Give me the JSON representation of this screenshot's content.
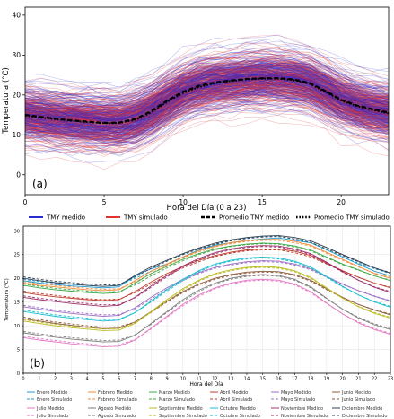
{
  "chart_data": [
    {
      "type": "line",
      "panel_label": "(a)",
      "xlabel": "Hora del Día (0 a 23)",
      "ylabel": "Temperatura (°C)",
      "xlim": [
        0,
        23
      ],
      "ylim": [
        -5,
        42
      ],
      "xticks": [
        0,
        5,
        10,
        15,
        20
      ],
      "yticks": [
        0,
        10,
        20,
        30,
        40
      ],
      "grid": false,
      "legend_position": "bottom",
      "legend": [
        {
          "label": "TMY medido",
          "color": "#2b2bd0",
          "style": "solid"
        },
        {
          "label": "TMY simulado",
          "color": "#e03030",
          "style": "solid"
        },
        {
          "label": "Promedio TMY medido",
          "color": "#000000",
          "style": "dashed"
        },
        {
          "label": "Promedio TMY simulado",
          "color": "#000000",
          "style": "dotted"
        }
      ],
      "colors": {
        "medido": "#2b2bd0",
        "simulado": "#e03030"
      },
      "series": [
        {
          "name": "Promedio TMY medido",
          "values": [
            15.0,
            14.5,
            14.0,
            13.6,
            13.3,
            13.0,
            13.1,
            14.0,
            16.0,
            18.6,
            20.8,
            22.3,
            23.1,
            23.6,
            24.0,
            24.2,
            24.2,
            23.9,
            23.0,
            21.0,
            18.8,
            17.4,
            16.4,
            15.6
          ]
        },
        {
          "name": "Promedio TMY simulado",
          "values": [
            14.8,
            14.3,
            13.9,
            13.5,
            13.2,
            12.9,
            13.0,
            13.8,
            15.7,
            18.3,
            20.5,
            22.0,
            22.9,
            23.5,
            23.9,
            24.1,
            24.1,
            23.7,
            22.8,
            20.8,
            18.6,
            17.2,
            16.2,
            15.4
          ]
        }
      ]
    },
    {
      "type": "line",
      "panel_label": "(b)",
      "xlabel": "Hora del Día",
      "ylabel": "Temperatura (°C)",
      "xlim": [
        0,
        23
      ],
      "ylim": [
        0,
        31
      ],
      "xticks": [
        0,
        1,
        2,
        3,
        4,
        5,
        6,
        7,
        8,
        9,
        10,
        11,
        12,
        13,
        14,
        15,
        16,
        17,
        18,
        19,
        20,
        21,
        22,
        23
      ],
      "yticks": [
        0,
        5,
        10,
        15,
        20,
        25,
        30
      ],
      "grid": true,
      "legend_position": "bottom",
      "series": [
        {
          "name": "Enero Medido",
          "color": "#1f9bcf",
          "style": "solid",
          "values": [
            19.5,
            19,
            18.7,
            18.4,
            18.2,
            18,
            18.2,
            20.5,
            22,
            23,
            24.5,
            26,
            27,
            27.5,
            28,
            28.3,
            28.5,
            28,
            27.5,
            26,
            24.5,
            23,
            21.5,
            20.5
          ]
        },
        {
          "name": "Enero Simulado",
          "color": "#1f9bcf",
          "style": "dashed",
          "values": [
            19.8,
            19.3,
            19,
            18.7,
            18.5,
            18.3,
            18.5,
            20,
            21.5,
            23,
            24.5,
            26,
            27,
            28,
            28.5,
            28.8,
            28.8,
            28.3,
            27.5,
            26,
            24.5,
            23.2,
            22,
            21
          ]
        },
        {
          "name": "Febrero Medido",
          "color": "#f08b3a",
          "style": "solid",
          "values": [
            19,
            18.5,
            18.2,
            17.9,
            17.6,
            17.4,
            17.6,
            19.5,
            21.5,
            23,
            24.5,
            25.8,
            26.8,
            27.5,
            28,
            28.2,
            28.2,
            27.8,
            27,
            25.5,
            24,
            22.5,
            21,
            20
          ]
        },
        {
          "name": "Febrero Simulado",
          "color": "#f08b3a",
          "style": "dashed",
          "values": [
            19.3,
            18.8,
            18.5,
            18.2,
            17.9,
            17.7,
            17.8,
            19.2,
            21,
            22.8,
            24.3,
            25.6,
            26.6,
            27.3,
            27.8,
            28,
            28,
            27.5,
            26.8,
            25.3,
            23.8,
            22.4,
            21.1,
            20.2
          ]
        },
        {
          "name": "Marzo Medido",
          "color": "#3aa845",
          "style": "solid",
          "values": [
            18.5,
            18,
            17.6,
            17.3,
            17,
            16.8,
            17,
            19,
            21,
            22.5,
            24,
            25.2,
            26.2,
            26.8,
            27.2,
            27.4,
            27.3,
            26.8,
            26,
            24.5,
            23,
            21.8,
            20.5,
            19.5
          ]
        },
        {
          "name": "Marzo Simulado",
          "color": "#3aa845",
          "style": "dashed",
          "values": [
            18.8,
            18.3,
            17.9,
            17.6,
            17.3,
            17.1,
            17.2,
            18.6,
            20.5,
            22.2,
            23.7,
            25,
            26,
            26.7,
            27.1,
            27.3,
            27.2,
            26.6,
            25.8,
            24.3,
            22.9,
            21.7,
            20.5,
            19.6
          ]
        },
        {
          "name": "Abril Medido",
          "color": "#c0392b",
          "style": "solid",
          "values": [
            17,
            16.5,
            16.1,
            15.8,
            15.5,
            15.3,
            15.5,
            17.2,
            19.2,
            21,
            22.5,
            23.8,
            24.8,
            25.5,
            26,
            26.2,
            26.2,
            25.7,
            24.8,
            23.2,
            21.6,
            20.2,
            19,
            18
          ]
        },
        {
          "name": "Abril Simulado",
          "color": "#c0392b",
          "style": "dashed",
          "values": [
            17.3,
            16.8,
            16.4,
            16,
            15.7,
            15.5,
            15.6,
            17,
            18.8,
            20.6,
            22.2,
            23.5,
            24.6,
            25.3,
            25.8,
            26,
            26,
            25.4,
            24.5,
            23,
            21.5,
            20.2,
            19,
            18.1
          ]
        },
        {
          "name": "Mayo Medido",
          "color": "#9b6fc4",
          "style": "solid",
          "values": [
            14,
            13.5,
            13,
            12.6,
            12.3,
            12,
            12.2,
            13.8,
            16,
            18,
            19.8,
            21.2,
            22.3,
            23,
            23.5,
            23.7,
            23.6,
            23,
            22,
            20.4,
            18.8,
            17.4,
            16.2,
            15.2
          ]
        },
        {
          "name": "Mayo Simulado",
          "color": "#9b6fc4",
          "style": "dashed",
          "values": [
            14.3,
            13.8,
            13.3,
            12.9,
            12.6,
            12.3,
            12.4,
            13.6,
            15.6,
            17.7,
            19.5,
            21,
            22.1,
            22.8,
            23.3,
            23.5,
            23.4,
            22.8,
            21.8,
            20.2,
            18.7,
            17.4,
            16.3,
            15.3
          ]
        },
        {
          "name": "Junio Medido",
          "color": "#8d5a3b",
          "style": "solid",
          "values": [
            11.5,
            11,
            10.5,
            10.1,
            9.7,
            9.4,
            9.5,
            10.8,
            13,
            15.2,
            17.2,
            18.8,
            20,
            20.8,
            21.3,
            21.5,
            21.4,
            20.8,
            19.6,
            17.8,
            16,
            14.5,
            13.3,
            12.3
          ]
        },
        {
          "name": "Junio Simulado",
          "color": "#8d5a3b",
          "style": "dashed",
          "values": [
            11.8,
            11.3,
            10.8,
            10.4,
            10,
            9.7,
            9.8,
            10.8,
            12.8,
            15,
            17,
            18.6,
            19.8,
            20.6,
            21.1,
            21.3,
            21.2,
            20.6,
            19.4,
            17.6,
            15.9,
            14.5,
            13.4,
            12.5
          ]
        },
        {
          "name": "Julio Medido",
          "color": "#e377c2",
          "style": "solid",
          "values": [
            7.5,
            7,
            6.6,
            6.2,
            5.9,
            5.6,
            5.7,
            7,
            9.5,
            12,
            14.5,
            16.5,
            18,
            19,
            19.6,
            19.8,
            19.6,
            18.8,
            17.2,
            14.8,
            12.5,
            10.6,
            9.2,
            8.2
          ]
        },
        {
          "name": "Julio Simulado",
          "color": "#e377c2",
          "style": "dashed",
          "values": [
            7.8,
            7.3,
            6.9,
            6.5,
            6.2,
            5.9,
            6,
            7.1,
            9.3,
            11.8,
            14.2,
            16.2,
            17.8,
            18.8,
            19.4,
            19.6,
            19.4,
            18.6,
            17,
            14.7,
            12.5,
            10.8,
            9.4,
            8.4
          ]
        },
        {
          "name": "Agosto Medido",
          "color": "#7f7f7f",
          "style": "solid",
          "values": [
            8.5,
            8,
            7.6,
            7.2,
            6.9,
            6.6,
            6.7,
            8,
            10.5,
            13,
            15.5,
            17.5,
            19,
            20,
            20.6,
            20.8,
            20.6,
            19.8,
            18.2,
            15.8,
            13.5,
            11.6,
            10.2,
            9.2
          ]
        },
        {
          "name": "Agosto Simulado",
          "color": "#7f7f7f",
          "style": "dashed",
          "values": [
            8.8,
            8.3,
            7.9,
            7.5,
            7.2,
            6.9,
            7,
            8.1,
            10.3,
            12.8,
            15.2,
            17.2,
            18.8,
            19.8,
            20.4,
            20.6,
            20.4,
            19.6,
            18,
            15.7,
            13.5,
            11.8,
            10.4,
            9.4
          ]
        },
        {
          "name": "Septiembre Medido",
          "color": "#bcbd22",
          "style": "solid",
          "values": [
            11,
            10.5,
            10,
            9.6,
            9.3,
            9,
            9.1,
            10.5,
            13,
            15.5,
            17.8,
            19.6,
            21,
            21.8,
            22.3,
            22.5,
            22.3,
            21.6,
            20.2,
            18,
            15.8,
            14,
            12.6,
            11.6
          ]
        },
        {
          "name": "Septiembre Simulado",
          "color": "#bcbd22",
          "style": "dashed",
          "values": [
            11.3,
            10.8,
            10.3,
            9.9,
            9.6,
            9.3,
            9.4,
            10.6,
            12.8,
            15.2,
            17.5,
            19.4,
            20.8,
            21.6,
            22.1,
            22.3,
            22.1,
            21.4,
            20,
            17.9,
            15.8,
            14.1,
            12.8,
            11.8
          ]
        },
        {
          "name": "Octubre Medido",
          "color": "#17becf",
          "style": "solid",
          "values": [
            13,
            12.5,
            12,
            11.6,
            11.3,
            11,
            11.2,
            12.8,
            15.2,
            17.6,
            19.8,
            21.6,
            23,
            23.8,
            24.3,
            24.5,
            24.3,
            23.6,
            22.4,
            20.4,
            18.3,
            16.5,
            15,
            13.9
          ]
        },
        {
          "name": "Octubre Simulado",
          "color": "#17becf",
          "style": "dashed",
          "values": [
            13.3,
            12.8,
            12.3,
            11.9,
            11.6,
            11.3,
            11.4,
            12.8,
            15,
            17.3,
            19.5,
            21.4,
            22.8,
            23.6,
            24.1,
            24.3,
            24.1,
            23.4,
            22.2,
            20.2,
            18.2,
            16.5,
            15.1,
            14.1
          ]
        },
        {
          "name": "Noviembre Medido",
          "color": "#9c2f6a",
          "style": "solid",
          "values": [
            16,
            15.5,
            15.1,
            14.7,
            14.4,
            14.1,
            14.3,
            16,
            18.4,
            20.6,
            22.6,
            24.2,
            25.4,
            26.2,
            26.7,
            26.9,
            26.8,
            26.2,
            25.2,
            23.4,
            21.4,
            19.6,
            18.1,
            17
          ]
        },
        {
          "name": "Noviembre Simulado",
          "color": "#9c2f6a",
          "style": "dashed",
          "values": [
            16.3,
            15.8,
            15.4,
            15,
            14.7,
            14.4,
            14.5,
            15.9,
            18.1,
            20.3,
            22.4,
            24,
            25.2,
            26,
            26.5,
            26.7,
            26.6,
            26,
            25,
            23.2,
            21.3,
            19.6,
            18.2,
            17.2
          ]
        },
        {
          "name": "Diciembre Medido",
          "color": "#2c3e50",
          "style": "solid",
          "values": [
            20,
            19.5,
            19.1,
            18.8,
            18.5,
            18.3,
            18.5,
            20.6,
            22.4,
            23.8,
            25.2,
            26.4,
            27.4,
            28.1,
            28.6,
            28.9,
            29,
            28.6,
            27.9,
            26.5,
            25,
            23.6,
            22.2,
            21.1
          ]
        },
        {
          "name": "Diciembre Simulado",
          "color": "#2c3e50",
          "style": "dashed",
          "values": [
            20.3,
            19.8,
            19.4,
            19.1,
            18.8,
            18.6,
            18.7,
            20.3,
            22.1,
            23.6,
            25,
            26.2,
            27.2,
            27.9,
            28.4,
            28.7,
            28.8,
            28.3,
            27.6,
            26.2,
            24.8,
            23.5,
            22.2,
            21.2
          ]
        }
      ]
    }
  ]
}
